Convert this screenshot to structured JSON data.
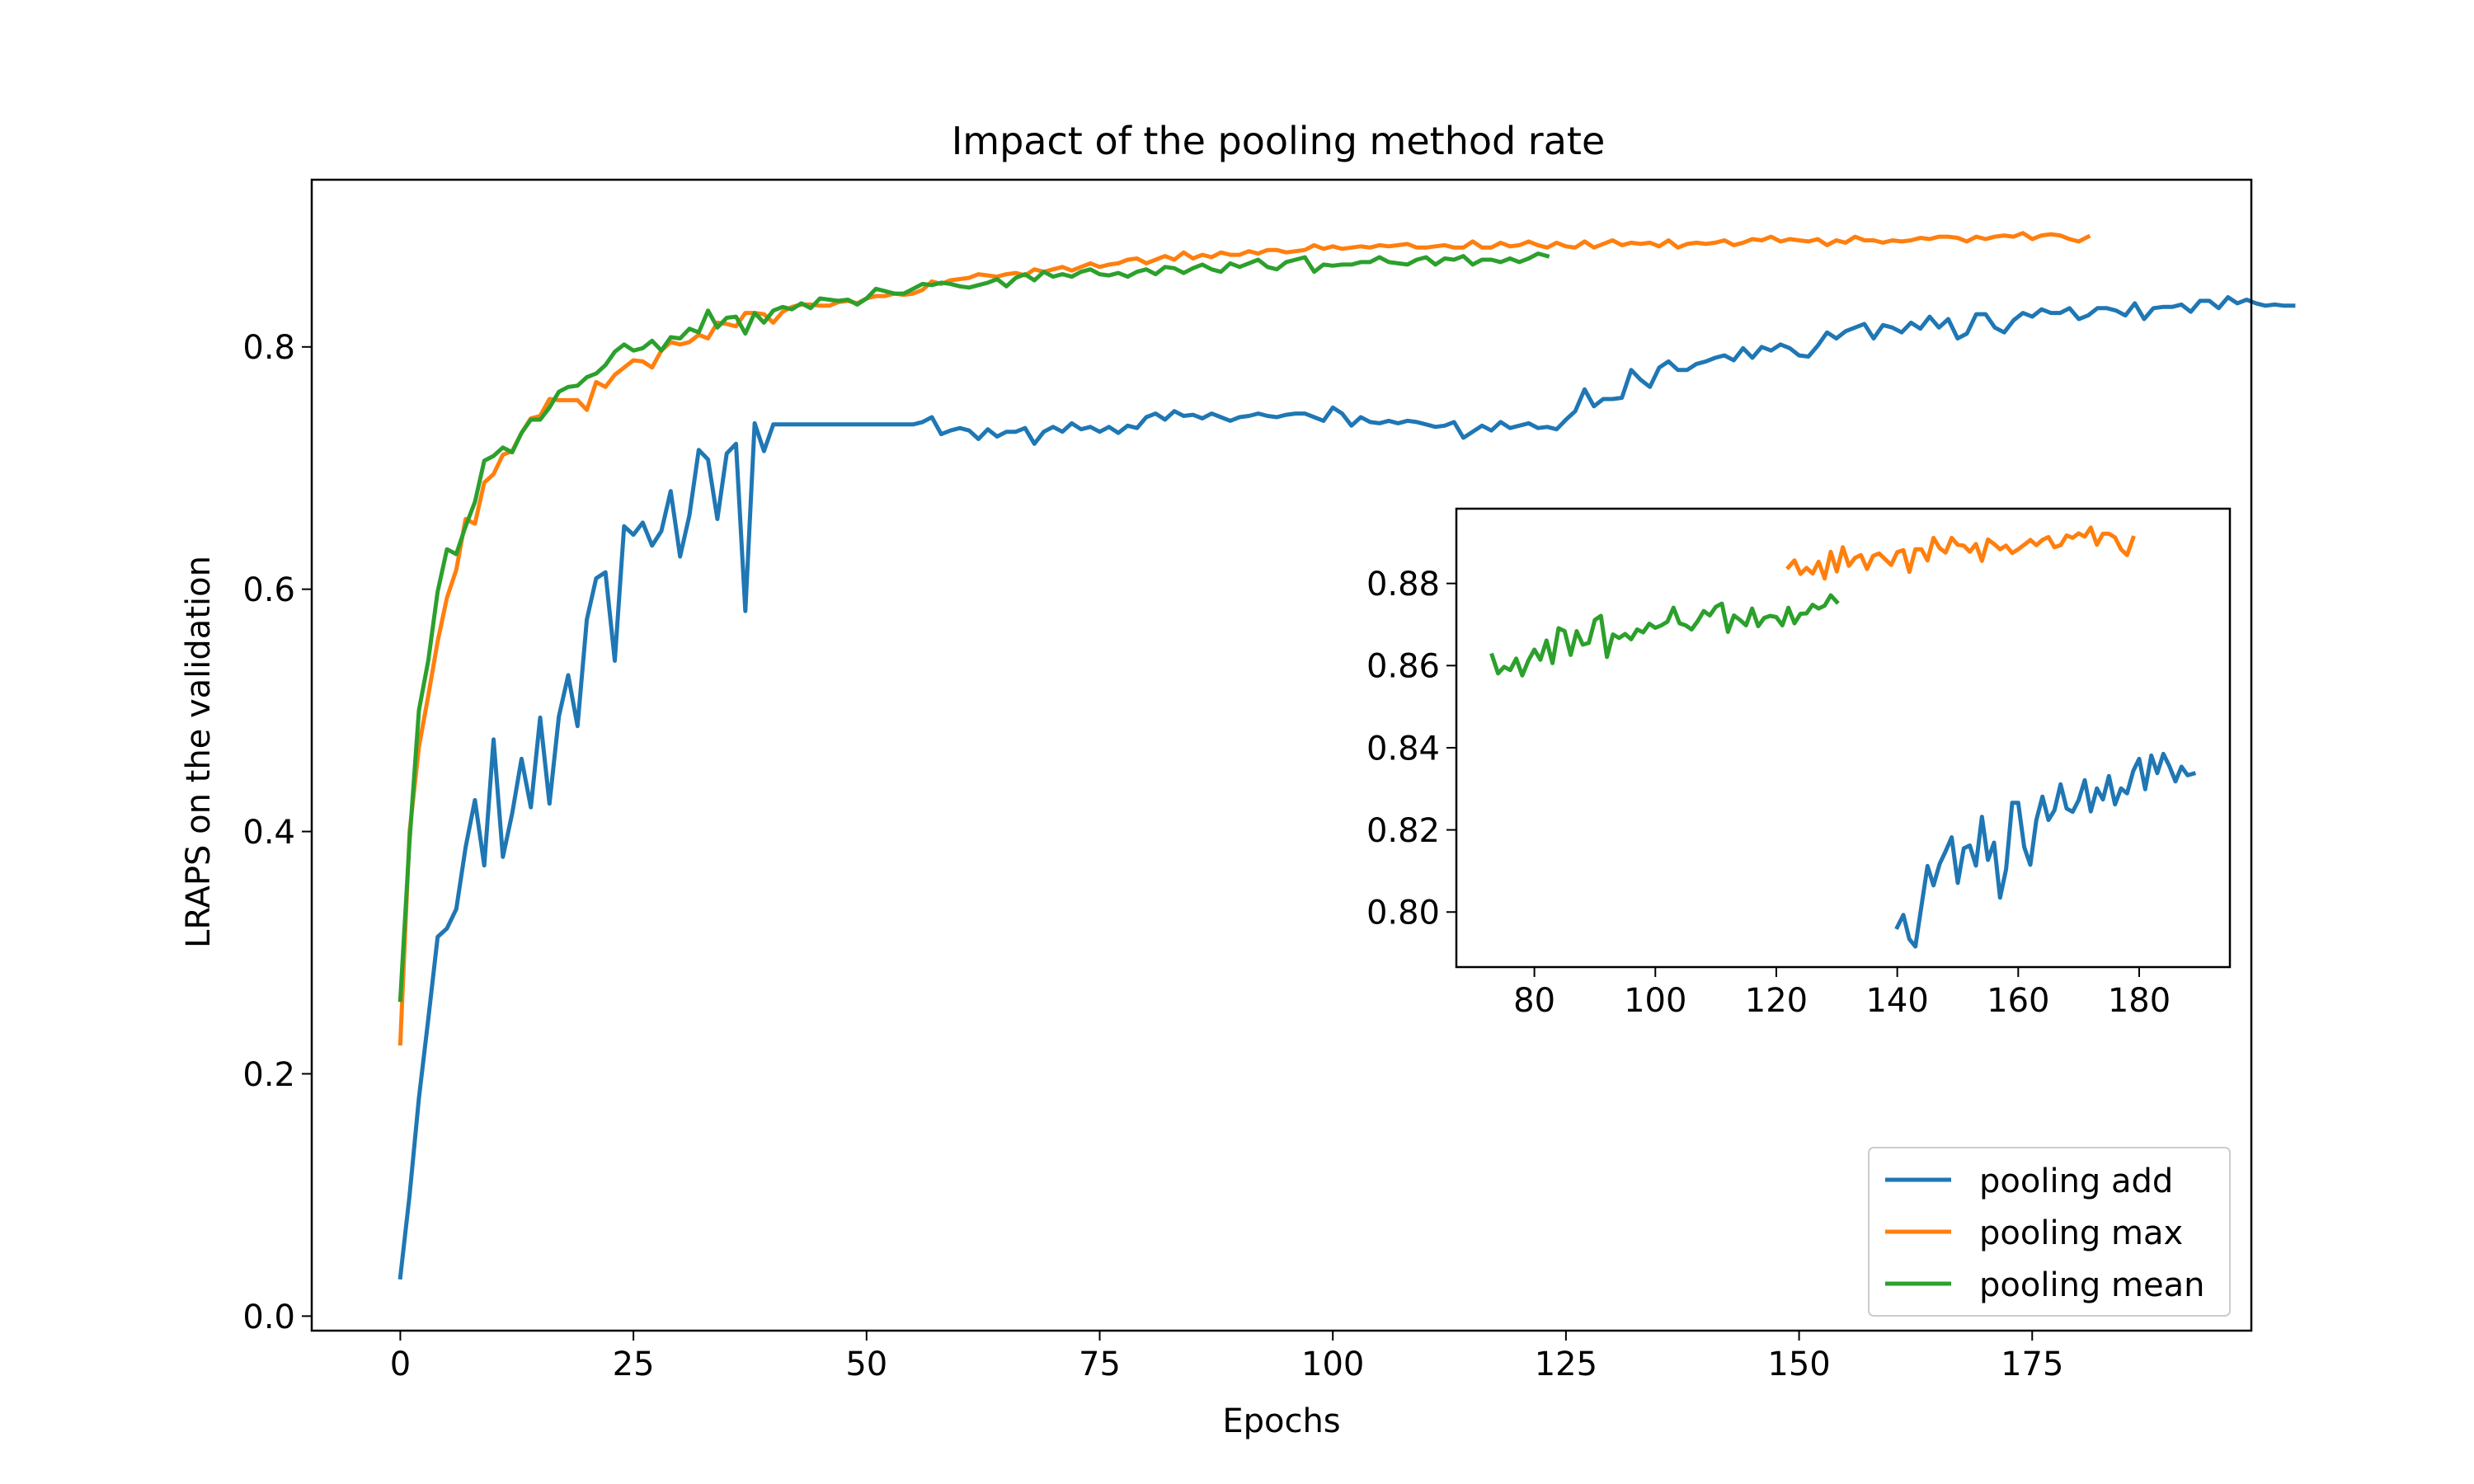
{
  "chart_data": [
    {
      "panel": "main",
      "type": "line",
      "title": "Impact of the pooling method rate",
      "xlabel": "Epochs",
      "ylabel": "LRAPS on the validation",
      "xlim": [
        -9.5,
        198.5
      ],
      "ylim": [
        -0.012,
        0.938
      ],
      "xticks": [
        0,
        25,
        50,
        75,
        100,
        125,
        150,
        175
      ],
      "yticks": [
        0.0,
        0.2,
        0.4,
        0.6,
        0.8
      ],
      "xtick_labels": [
        "0",
        "25",
        "50",
        "75",
        "100",
        "125",
        "150",
        "175"
      ],
      "ytick_labels": [
        "0.0",
        "0.2",
        "0.4",
        "0.6",
        "0.8"
      ],
      "grid": false,
      "legend_position": "lower right",
      "series": [
        {
          "name": "pooling add",
          "color": "#1f77b4",
          "x_start": 0,
          "values": [
            0.032,
            0.1,
            0.18,
            0.245,
            0.313,
            0.32,
            0.336,
            0.387,
            0.426,
            0.372,
            0.476,
            0.379,
            0.415,
            0.46,
            0.42,
            0.494,
            0.423,
            0.495,
            0.529,
            0.487,
            0.575,
            0.609,
            0.614,
            0.541,
            0.652,
            0.645,
            0.655,
            0.636,
            0.648,
            0.681,
            0.627,
            0.661,
            0.715,
            0.707,
            0.658,
            0.712,
            0.72,
            0.582,
            0.737,
            0.714,
            0.736,
            0.736,
            0.736,
            0.736,
            0.736,
            0.736,
            0.736,
            0.736,
            0.736,
            0.736,
            0.736,
            0.736,
            0.736,
            0.736,
            0.736,
            0.736,
            0.738,
            0.742,
            0.728,
            0.731,
            0.733,
            0.731,
            0.724,
            0.732,
            0.726,
            0.73,
            0.73,
            0.733,
            0.72,
            0.73,
            0.734,
            0.73,
            0.737,
            0.732,
            0.734,
            0.73,
            0.734,
            0.729,
            0.735,
            0.733,
            0.742,
            0.745,
            0.74,
            0.747,
            0.743,
            0.744,
            0.741,
            0.745,
            0.742,
            0.739,
            0.742,
            0.743,
            0.745,
            0.743,
            0.742,
            0.744,
            0.745,
            0.745,
            0.742,
            0.739,
            0.75,
            0.745,
            0.735,
            0.742,
            0.738,
            0.737,
            0.739,
            0.737,
            0.739,
            0.738,
            0.736,
            0.734,
            0.735,
            0.738,
            0.725,
            0.73,
            0.735,
            0.731,
            0.738,
            0.733,
            0.735,
            0.737,
            0.733,
            0.734,
            0.732,
            0.74,
            0.747,
            0.765,
            0.751,
            0.757,
            0.757,
            0.758,
            0.781,
            0.773,
            0.767,
            0.783,
            0.788,
            0.781,
            0.781,
            0.786,
            0.788,
            0.791,
            0.793,
            0.789,
            0.799,
            0.791,
            0.8,
            0.797,
            0.802,
            0.799,
            0.793,
            0.792,
            0.801,
            0.812,
            0.807,
            0.813,
            0.816,
            0.819,
            0.807,
            0.818,
            0.816,
            0.812,
            0.82,
            0.815,
            0.825,
            0.816,
            0.823,
            0.807,
            0.811,
            0.827,
            0.827,
            0.816,
            0.812,
            0.822,
            0.828,
            0.825,
            0.831,
            0.828,
            0.828,
            0.832,
            0.823,
            0.826,
            0.832,
            0.832,
            0.83,
            0.826,
            0.836,
            0.823,
            0.832,
            0.833,
            0.833,
            0.835,
            0.829,
            0.838,
            0.838,
            0.832,
            0.841,
            0.836,
            0.839,
            0.836,
            0.834,
            0.835,
            0.834,
            0.834
          ]
        },
        {
          "name": "pooling max",
          "color": "#ff7f0e",
          "x_start": 0,
          "values": [
            0.225,
            0.4,
            0.47,
            0.512,
            0.557,
            0.593,
            0.616,
            0.658,
            0.654,
            0.688,
            0.695,
            0.711,
            0.714,
            0.729,
            0.741,
            0.743,
            0.757,
            0.756,
            0.756,
            0.756,
            0.748,
            0.771,
            0.767,
            0.777,
            0.783,
            0.789,
            0.788,
            0.783,
            0.797,
            0.804,
            0.802,
            0.804,
            0.81,
            0.807,
            0.82,
            0.819,
            0.817,
            0.828,
            0.828,
            0.827,
            0.82,
            0.829,
            0.833,
            0.835,
            0.835,
            0.834,
            0.834,
            0.837,
            0.838,
            0.836,
            0.84,
            0.842,
            0.842,
            0.844,
            0.843,
            0.844,
            0.847,
            0.854,
            0.852,
            0.855,
            0.856,
            0.857,
            0.86,
            0.859,
            0.858,
            0.86,
            0.861,
            0.859,
            0.864,
            0.862,
            0.864,
            0.866,
            0.863,
            0.866,
            0.869,
            0.866,
            0.868,
            0.869,
            0.872,
            0.873,
            0.869,
            0.872,
            0.875,
            0.872,
            0.878,
            0.873,
            0.876,
            0.874,
            0.878,
            0.876,
            0.876,
            0.879,
            0.877,
            0.88,
            0.88,
            0.878,
            0.879,
            0.88,
            0.884,
            0.881,
            0.883,
            0.881,
            0.882,
            0.883,
            0.882,
            0.884,
            0.883,
            0.884,
            0.885,
            0.882,
            0.882,
            0.883,
            0.884,
            0.882,
            0.882,
            0.887,
            0.882,
            0.882,
            0.886,
            0.883,
            0.884,
            0.887,
            0.884,
            0.882,
            0.886,
            0.883,
            0.882,
            0.887,
            0.882,
            0.885,
            0.888,
            0.884,
            0.886,
            0.885,
            0.886,
            0.883,
            0.888,
            0.882,
            0.885,
            0.886,
            0.885,
            0.886,
            0.888,
            0.884,
            0.886,
            0.889,
            0.888,
            0.891,
            0.887,
            0.889,
            0.888,
            0.887,
            0.889,
            0.884,
            0.888,
            0.886,
            0.891,
            0.888,
            0.888,
            0.886,
            0.888,
            0.887,
            0.888,
            0.89,
            0.889,
            0.891,
            0.891,
            0.89,
            0.887,
            0.891,
            0.889,
            0.891,
            0.892,
            0.891,
            0.894,
            0.889,
            0.892,
            0.893,
            0.892,
            0.889,
            0.887,
            0.891
          ]
        },
        {
          "name": "pooling mean",
          "color": "#2ca02c",
          "x_start": 0,
          "values": [
            0.261,
            0.393,
            0.5,
            0.541,
            0.598,
            0.633,
            0.629,
            0.652,
            0.672,
            0.706,
            0.71,
            0.717,
            0.713,
            0.729,
            0.74,
            0.74,
            0.75,
            0.763,
            0.767,
            0.768,
            0.775,
            0.778,
            0.785,
            0.796,
            0.802,
            0.797,
            0.799,
            0.805,
            0.797,
            0.808,
            0.807,
            0.815,
            0.812,
            0.83,
            0.816,
            0.824,
            0.825,
            0.811,
            0.828,
            0.82,
            0.83,
            0.833,
            0.831,
            0.836,
            0.832,
            0.84,
            0.839,
            0.838,
            0.839,
            0.835,
            0.84,
            0.848,
            0.846,
            0.844,
            0.844,
            0.848,
            0.852,
            0.851,
            0.853,
            0.852,
            0.85,
            0.849,
            0.851,
            0.853,
            0.856,
            0.85,
            0.857,
            0.86,
            0.855,
            0.862,
            0.858,
            0.86,
            0.858,
            0.862,
            0.864,
            0.86,
            0.859,
            0.861,
            0.858,
            0.862,
            0.864,
            0.86,
            0.866,
            0.865,
            0.861,
            0.865,
            0.868,
            0.864,
            0.862,
            0.869,
            0.866,
            0.869,
            0.872,
            0.866,
            0.864,
            0.87,
            0.872,
            0.874,
            0.862,
            0.868,
            0.867,
            0.868,
            0.868,
            0.87,
            0.87,
            0.874,
            0.87,
            0.869,
            0.868,
            0.872,
            0.874,
            0.868,
            0.873,
            0.872,
            0.875,
            0.868,
            0.872,
            0.872,
            0.87,
            0.873,
            0.87,
            0.873,
            0.877,
            0.875
          ]
        }
      ]
    },
    {
      "panel": "inset",
      "type": "line",
      "title": "",
      "xlabel": "",
      "ylabel": "",
      "xlim": [
        67.1,
        195
      ],
      "ylim": [
        0.7866,
        0.8982
      ],
      "xticks": [
        80,
        100,
        120,
        140,
        160,
        180
      ],
      "yticks": [
        0.8,
        0.82,
        0.84,
        0.86,
        0.88
      ],
      "xtick_labels": [
        "80",
        "100",
        "120",
        "140",
        "160",
        "180"
      ],
      "ytick_labels": [
        "0.80",
        "0.82",
        "0.84",
        "0.86",
        "0.88"
      ],
      "grid": false,
      "series": [
        {
          "name": "pooling add",
          "color": "#1f77b4",
          "x_start": 140,
          "values": [
            0.7963,
            0.7993,
            0.7934,
            0.7916,
            0.8015,
            0.8112,
            0.8065,
            0.8117,
            0.8148,
            0.8182,
            0.8071,
            0.8155,
            0.8162,
            0.8113,
            0.8232,
            0.8127,
            0.8169,
            0.8035,
            0.8104,
            0.8266,
            0.8266,
            0.8158,
            0.8115,
            0.8224,
            0.8281,
            0.8224,
            0.8248,
            0.8311,
            0.8252,
            0.8244,
            0.8273,
            0.8321,
            0.8245,
            0.8301,
            0.8274,
            0.8331,
            0.8262,
            0.8301,
            0.8289,
            0.8343,
            0.8373,
            0.8299,
            0.8381,
            0.8338,
            0.8385,
            0.8355,
            0.8318,
            0.8354,
            0.8333,
            0.8337
          ]
        },
        {
          "name": "pooling max",
          "color": "#ff7f0e",
          "x_start": 122,
          "values": [
            0.8839,
            0.8856,
            0.8823,
            0.8838,
            0.8824,
            0.8853,
            0.8812,
            0.8877,
            0.8829,
            0.8888,
            0.8843,
            0.8862,
            0.8869,
            0.8835,
            0.8867,
            0.8873,
            0.8859,
            0.8845,
            0.8876,
            0.8881,
            0.8828,
            0.8883,
            0.8883,
            0.8856,
            0.8911,
            0.8886,
            0.8875,
            0.8911,
            0.8894,
            0.8892,
            0.8877,
            0.8896,
            0.8855,
            0.8907,
            0.8896,
            0.8883,
            0.8892,
            0.8874,
            0.8883,
            0.8894,
            0.8906,
            0.8893,
            0.8906,
            0.8913,
            0.8888,
            0.8893,
            0.8917,
            0.8911,
            0.8922,
            0.8914,
            0.8936,
            0.8894,
            0.8921,
            0.8921,
            0.8912,
            0.8883,
            0.8869,
            0.8911
          ]
        },
        {
          "name": "pooling mean",
          "color": "#2ca02c",
          "x_start": 73,
          "values": [
            0.8625,
            0.8581,
            0.8597,
            0.8589,
            0.8617,
            0.8576,
            0.8612,
            0.8639,
            0.8614,
            0.8661,
            0.8606,
            0.8691,
            0.8684,
            0.8626,
            0.8684,
            0.8651,
            0.8655,
            0.8711,
            0.8721,
            0.8621,
            0.8676,
            0.8667,
            0.8677,
            0.8664,
            0.8688,
            0.8681,
            0.8702,
            0.8692,
            0.8698,
            0.8707,
            0.8741,
            0.8703,
            0.8698,
            0.8688,
            0.8708,
            0.8733,
            0.8722,
            0.8743,
            0.8751,
            0.8682,
            0.8722,
            0.8711,
            0.8698,
            0.8739,
            0.8696,
            0.8716,
            0.8721,
            0.8718,
            0.8698,
            0.8741,
            0.8703,
            0.8726,
            0.8727,
            0.8748,
            0.8739,
            0.8746,
            0.8771,
            0.8755
          ]
        }
      ]
    }
  ]
}
